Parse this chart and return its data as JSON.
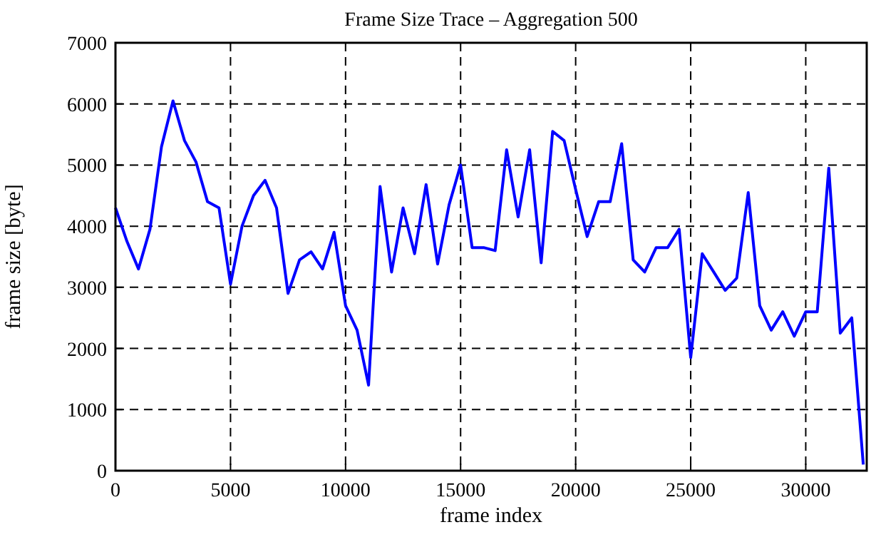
{
  "chart_data": {
    "type": "line",
    "title": "Frame Size Trace – Aggregation 500",
    "xlabel": "frame index",
    "ylabel": "frame size [byte]",
    "x": [
      0,
      500,
      1000,
      1500,
      2000,
      2500,
      3000,
      3500,
      4000,
      4500,
      5000,
      5500,
      6000,
      6500,
      7000,
      7500,
      8000,
      8500,
      9000,
      9500,
      10000,
      10500,
      11000,
      11500,
      12000,
      12500,
      13000,
      13500,
      14000,
      14500,
      15000,
      15500,
      16000,
      16500,
      17000,
      17500,
      18000,
      18500,
      19000,
      19500,
      20000,
      20500,
      21000,
      21500,
      22000,
      22500,
      23000,
      23500,
      24000,
      24500,
      25000,
      25500,
      26000,
      26500,
      27000,
      27500,
      28000,
      28500,
      29000,
      29500,
      30000,
      30500,
      31000,
      31500,
      32000,
      32500
    ],
    "series": [
      {
        "color": "#0000ff",
        "values": [
          4300,
          3750,
          3300,
          3950,
          5300,
          6050,
          5400,
          5050,
          4400,
          4300,
          3050,
          4000,
          4500,
          4750,
          4300,
          2900,
          3450,
          3580,
          3300,
          3900,
          2700,
          2300,
          1400,
          4650,
          3250,
          4300,
          3550,
          4680,
          3380,
          4350,
          5000,
          3650,
          3650,
          3600,
          5250,
          4150,
          5250,
          3400,
          5550,
          5400,
          4600,
          3830,
          4400,
          4400,
          5350,
          3450,
          3250,
          3650,
          3650,
          3950,
          1850,
          3550,
          3250,
          2950,
          3150,
          4550,
          2700,
          2300,
          2600,
          2200,
          2600,
          2600,
          4950,
          2250,
          2500,
          100
        ]
      }
    ],
    "xlim": [
      0,
      32650
    ],
    "ylim": [
      0,
      7000
    ],
    "xticks": [
      0,
      5000,
      10000,
      15000,
      20000,
      25000,
      30000
    ],
    "yticks": [
      0,
      1000,
      2000,
      3000,
      4000,
      5000,
      6000,
      7000
    ],
    "grid": true,
    "line_style": "solid",
    "marker": "none"
  }
}
